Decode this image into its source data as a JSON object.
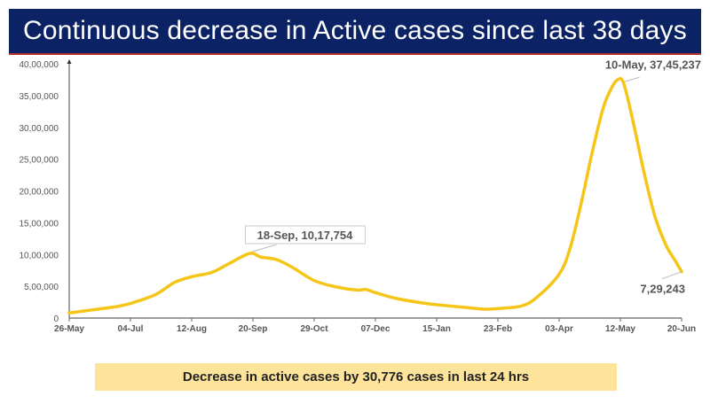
{
  "title": "Continuous decrease in Active cases since last 38 days",
  "footer": "Decrease in active cases by 30,776 cases in last 24 hrs",
  "chart_data": {
    "type": "line",
    "title": "Continuous decrease in Active cases since last 38 days",
    "xlabel": "",
    "ylabel": "",
    "ylim": [
      0,
      4000000
    ],
    "xlim": [
      "2020-05-26",
      "2021-06-20"
    ],
    "y_ticks": [
      0,
      500000,
      1000000,
      1500000,
      2000000,
      2500000,
      3000000,
      3500000,
      4000000
    ],
    "y_tick_labels": [
      "0",
      "5,00,000",
      "10,00,000",
      "15,00,000",
      "20,00,000",
      "25,00,000",
      "30,00,000",
      "35,00,000",
      "40,00,000"
    ],
    "x_ticks": [
      "2020-05-26",
      "2020-07-04",
      "2020-08-12",
      "2020-09-20",
      "2020-10-29",
      "2020-12-07",
      "2021-01-15",
      "2021-02-23",
      "2021-04-03",
      "2021-05-12",
      "2021-06-20"
    ],
    "x_tick_labels": [
      "26-May",
      "04-Jul",
      "12-Aug",
      "20-Sep",
      "29-Oct",
      "07-Dec",
      "15-Jan",
      "23-Feb",
      "03-Apr",
      "12-May",
      "20-Jun"
    ],
    "line_color": "#f5c518",
    "grid": false,
    "series": [
      {
        "points": [
          [
            "2020-05-26",
            80000
          ],
          [
            "2020-06-10",
            130000
          ],
          [
            "2020-06-25",
            180000
          ],
          [
            "2020-07-04",
            230000
          ],
          [
            "2020-07-20",
            370000
          ],
          [
            "2020-08-01",
            560000
          ],
          [
            "2020-08-12",
            650000
          ],
          [
            "2020-08-25",
            720000
          ],
          [
            "2020-09-05",
            860000
          ],
          [
            "2020-09-18",
            1017754
          ],
          [
            "2020-09-25",
            960000
          ],
          [
            "2020-10-05",
            920000
          ],
          [
            "2020-10-15",
            800000
          ],
          [
            "2020-10-29",
            590000
          ],
          [
            "2020-11-12",
            490000
          ],
          [
            "2020-11-25",
            440000
          ],
          [
            "2020-12-01",
            450000
          ],
          [
            "2020-12-07",
            400000
          ],
          [
            "2020-12-20",
            310000
          ],
          [
            "2021-01-05",
            240000
          ],
          [
            "2021-01-15",
            210000
          ],
          [
            "2021-02-01",
            170000
          ],
          [
            "2021-02-15",
            140000
          ],
          [
            "2021-02-23",
            150000
          ],
          [
            "2021-03-10",
            190000
          ],
          [
            "2021-03-20",
            330000
          ],
          [
            "2021-04-03",
            690000
          ],
          [
            "2021-04-10",
            1100000
          ],
          [
            "2021-04-17",
            1800000
          ],
          [
            "2021-04-24",
            2600000
          ],
          [
            "2021-05-01",
            3300000
          ],
          [
            "2021-05-06",
            3600000
          ],
          [
            "2021-05-10",
            3745237
          ],
          [
            "2021-05-14",
            3700000
          ],
          [
            "2021-05-20",
            3100000
          ],
          [
            "2021-05-27",
            2300000
          ],
          [
            "2021-06-03",
            1600000
          ],
          [
            "2021-06-10",
            1150000
          ],
          [
            "2021-06-16",
            900000
          ],
          [
            "2021-06-20",
            729243
          ]
        ]
      }
    ],
    "annotations": [
      {
        "x": "2020-09-18",
        "y": 1017754,
        "label": "18-Sep, 10,17,754"
      },
      {
        "x": "2021-05-10",
        "y": 3745237,
        "label": "10-May, 37,45,237"
      },
      {
        "x": "2021-06-20",
        "y": 729243,
        "label": "7,29,243"
      }
    ]
  }
}
